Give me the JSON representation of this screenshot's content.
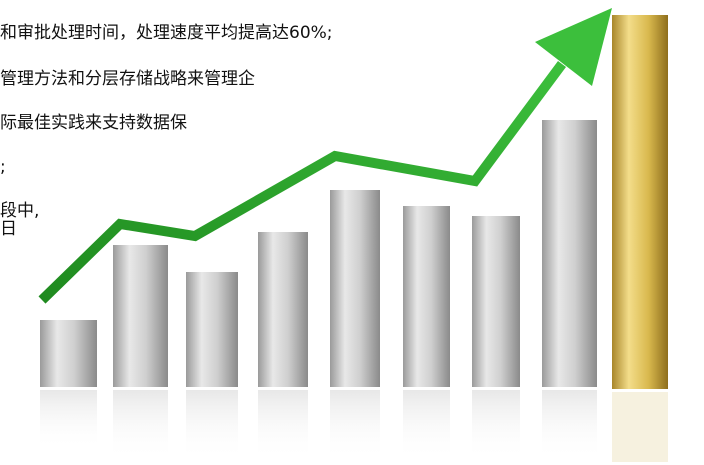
{
  "text_lines": [
    "和审批处理时间，处理速度平均提高达60%;",
    "管理方法和分层存储战略来管理企",
    "际最佳实践来支持数据保",
    ";",
    "段中,",
    "日"
  ]
}
